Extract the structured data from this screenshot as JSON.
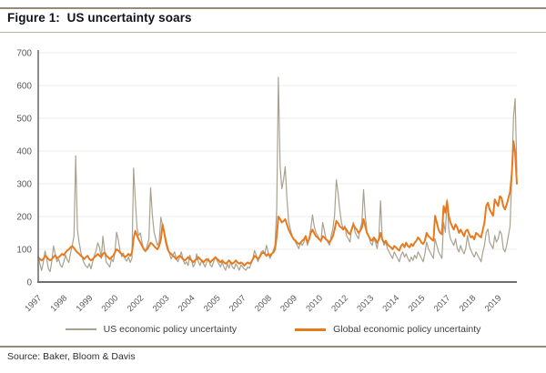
{
  "figure": {
    "title": "Figure 1:  US uncertainty soars",
    "source": "Source: Baker, Bloom & Davis"
  },
  "colors": {
    "us_series": "#a9a18f",
    "global_series": "#e87a1e",
    "axis": "#6f6f6f",
    "grid": "#efede8",
    "tick_text": "#595959",
    "rule_dark": "#948c74",
    "rule_light": "#b9b1a0",
    "title_text": "#12121c"
  },
  "chart_data": {
    "type": "line",
    "title": "Figure 1: US uncertainty soars",
    "xlabel": "",
    "ylabel": "",
    "x_unit": "month",
    "x_months_per_tick": 15,
    "x_tick_labels": [
      "1997",
      "1998",
      "1999",
      "2000",
      "2002",
      "2003",
      "2004",
      "2005",
      "2007",
      "2008",
      "2009",
      "2010",
      "2012",
      "2013",
      "2014",
      "2015",
      "2017",
      "2018",
      "2019"
    ],
    "y_ticks": [
      0,
      100,
      200,
      300,
      400,
      500,
      600,
      700
    ],
    "ylim": [
      0,
      700
    ],
    "grid": "faint horizontal gridlines every 100",
    "legend_position": "bottom-center",
    "series": [
      {
        "name": "US economic policy uncertainty",
        "color": "#a9a18f",
        "values": [
          80,
          55,
          35,
          60,
          95,
          70,
          40,
          32,
          65,
          110,
          85,
          62,
          70,
          52,
          45,
          62,
          82,
          68,
          60,
          90,
          112,
          140,
          385,
          160,
          122,
          92,
          70,
          58,
          48,
          44,
          56,
          40,
          62,
          82,
          96,
          120,
          105,
          72,
          140,
          92,
          60,
          54,
          46,
          70,
          62,
          88,
          152,
          128,
          96,
          78,
          88,
          70,
          64,
          76,
          60,
          72,
          348,
          250,
          165,
          142,
          150,
          118,
          98,
          92,
          112,
          132,
          288,
          205,
          152,
          132,
          112,
          122,
          198,
          172,
          152,
          130,
          108,
          88,
          70,
          82,
          92,
          72,
          62,
          76,
          92,
          70,
          55,
          62,
          50,
          82,
          66,
          46,
          56,
          86,
          62,
          50,
          66,
          56,
          46,
          62,
          72,
          52,
          46,
          62,
          76,
          66,
          56,
          46,
          60,
          46,
          36,
          56,
          42,
          62,
          46,
          40,
          56,
          46,
          36,
          52,
          46,
          40,
          36,
          46,
          42,
          56,
          72,
          96,
          82,
          62,
          78,
          92,
          96,
          86,
          112,
          92,
          72,
          82,
          96,
          112,
          222,
          625,
          355,
          285,
          312,
          352,
          255,
          185,
          162,
          142,
          132,
          122,
          112,
          102,
          122,
          112,
          122,
          142,
          112,
          132,
          162,
          205,
          172,
          152,
          142,
          132,
          122,
          182,
          156,
          132,
          122,
          112,
          142,
          162,
          205,
          312,
          272,
          222,
          182,
          162,
          172,
          142,
          132,
          122,
          162,
          182,
          152,
          142,
          132,
          162,
          182,
          282,
          202,
          152,
          142,
          122,
          112,
          132,
          122,
          102,
          142,
          248,
          132,
          112,
          122,
          102,
          92,
          82,
          72,
          92,
          82,
          72,
          62,
          82,
          92,
          76,
          86,
          72,
          62,
          76,
          66,
          82,
          72,
          92,
          82,
          72,
          62,
          86,
          122,
          102,
          92,
          82,
          72,
          132,
          112,
          92,
          82,
          72,
          182,
          152,
          252,
          162,
          132,
          122,
          112,
          132,
          102,
          92,
          112,
          96,
          86,
          102,
          142,
          112,
          96,
          86,
          76,
          92,
          82,
          72,
          62,
          92,
          112,
          152,
          162,
          122,
          112,
          102,
          142,
          122,
          132,
          156,
          146,
          102,
          92,
          112,
          140,
          170,
          320,
          505,
          560,
          335
        ]
      },
      {
        "name": "Global economic policy uncertainty",
        "color": "#e87a1e",
        "values": [
          76,
          70,
          66,
          70,
          80,
          76,
          70,
          66,
          70,
          76,
          82,
          72,
          76,
          80,
          86,
          82,
          90,
          96,
          100,
          106,
          110,
          104,
          96,
          90,
          86,
          80,
          76,
          70,
          76,
          80,
          70,
          66,
          70,
          76,
          80,
          86,
          80,
          76,
          86,
          90,
          80,
          76,
          70,
          76,
          80,
          90,
          100,
          96,
          90,
          86,
          80,
          76,
          80,
          86,
          80,
          90,
          132,
          156,
          142,
          130,
          120,
          110,
          100,
          96,
          100,
          110,
          120,
          116,
          110,
          104,
          100,
          110,
          130,
          176,
          150,
          120,
          100,
          90,
          86,
          80,
          76,
          70,
          76,
          80,
          76,
          70,
          66,
          70,
          76,
          70,
          66,
          60,
          66,
          70,
          76,
          70,
          66,
          60,
          66,
          70,
          66,
          60,
          66,
          70,
          76,
          70,
          66,
          60,
          66,
          60,
          56,
          60,
          66,
          60,
          56,
          60,
          66,
          60,
          56,
          60,
          56,
          50,
          56,
          60,
          56,
          60,
          70,
          80,
          76,
          70,
          76,
          86,
          90,
          86,
          80,
          86,
          80,
          86,
          90,
          100,
          140,
          200,
          192,
          182,
          186,
          192,
          176,
          160,
          150,
          140,
          130,
          126,
          120,
          116,
          120,
          126,
          130,
          140,
          120,
          130,
          150,
          160,
          150,
          140,
          136,
          130,
          126,
          140,
          136,
          130,
          126,
          120,
          130,
          140,
          160,
          186,
          180,
          170,
          166,
          160,
          166,
          160,
          150,
          146,
          160,
          176,
          166,
          160,
          150,
          156,
          166,
          192,
          170,
          150,
          140,
          130,
          126,
          136,
          130,
          120,
          130,
          150,
          130,
          120,
          126,
          116,
          110,
          106,
          100,
          110,
          106,
          100,
          96,
          110,
          116,
          106,
          120,
          110,
          106,
          116,
          110,
          120,
          126,
          136,
          130,
          120,
          116,
          126,
          150,
          140,
          136,
          130,
          126,
          202,
          182,
          160,
          150,
          146,
          232,
          212,
          246,
          202,
          182,
          170,
          160,
          176,
          166,
          150,
          160,
          150,
          140,
          156,
          160,
          146,
          136,
          140,
          130,
          150,
          146,
          140,
          136,
          160,
          182,
          232,
          242,
          222,
          212,
          202,
          252,
          242,
          232,
          262,
          256,
          232,
          222,
          236,
          255,
          275,
          330,
          430,
          395,
          300
        ]
      }
    ]
  }
}
